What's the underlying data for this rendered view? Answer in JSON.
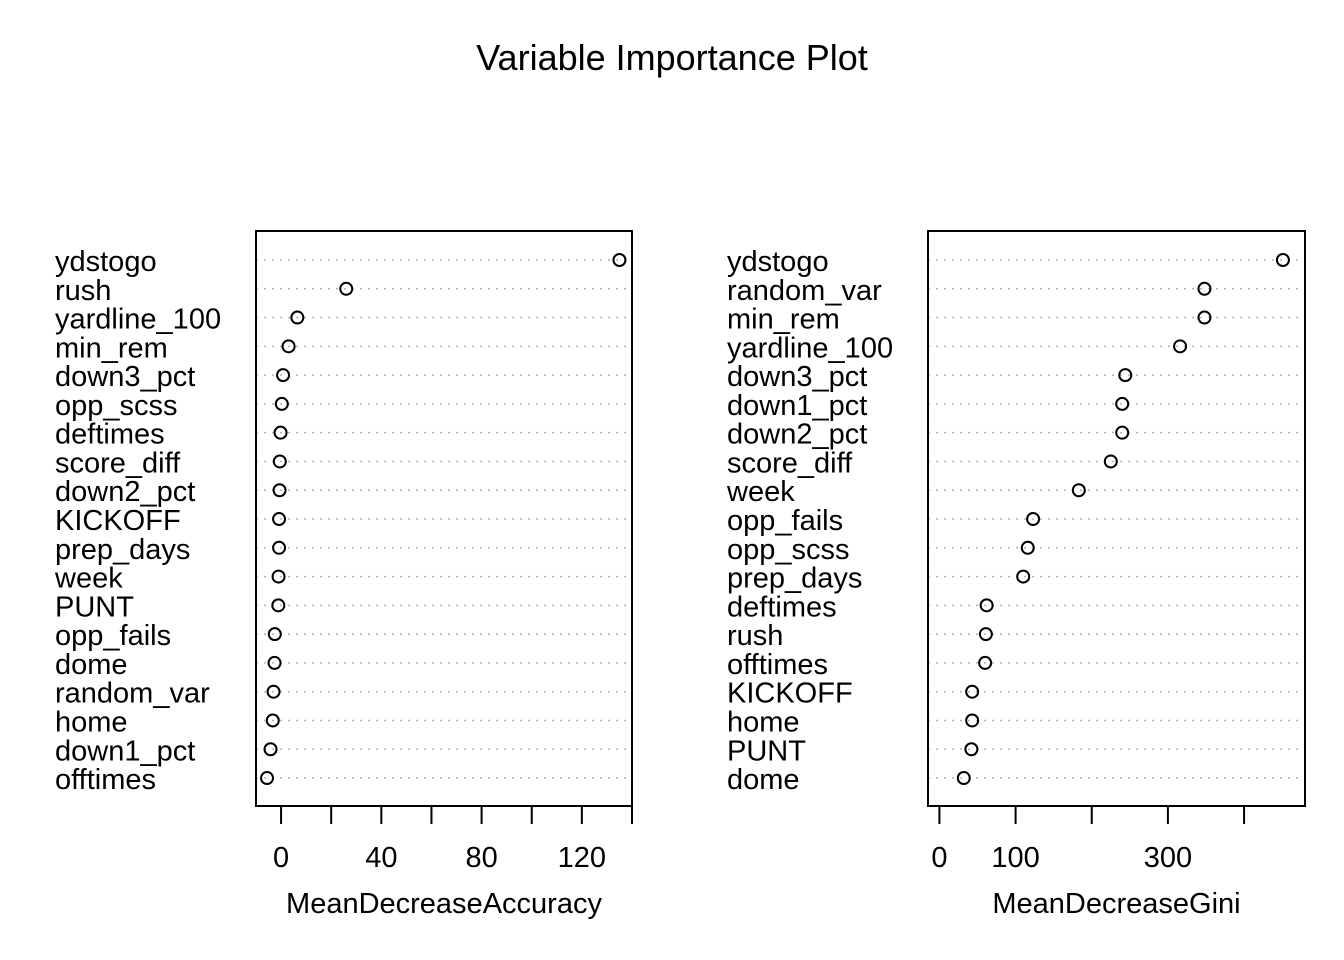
{
  "chart_data": [
    {
      "type": "scatter",
      "title": "Variable Importance Plot",
      "xlabel": "MeanDecreaseAccuracy",
      "xlim": [
        -10,
        140
      ],
      "xticks": [
        0,
        20,
        40,
        60,
        80,
        100,
        120,
        140
      ],
      "xtick_labels": [
        "0",
        "",
        "40",
        "",
        "80",
        "",
        "120",
        ""
      ],
      "grid": "horizontal-dotted",
      "categories": [
        "ydstogo",
        "rush",
        "yardline_100",
        "min_rem",
        "down3_pct",
        "opp_scss",
        "deftimes",
        "score_diff",
        "down2_pct",
        "KICKOFF",
        "prep_days",
        "week",
        "PUNT",
        "opp_fails",
        "dome",
        "random_var",
        "home",
        "down1_pct",
        "offtimes"
      ],
      "values": [
        135,
        26,
        6.5,
        3,
        0.8,
        0.3,
        -0.2,
        -0.5,
        -0.6,
        -0.8,
        -0.8,
        -1.0,
        -1.1,
        -2.5,
        -2.6,
        -3.0,
        -3.3,
        -4.2,
        -5.6
      ]
    },
    {
      "type": "scatter",
      "xlabel": "MeanDecreaseGini",
      "xlim": [
        -15,
        480
      ],
      "xticks": [
        0,
        100,
        200,
        300,
        400
      ],
      "xtick_labels": [
        "0",
        "100",
        "",
        "300",
        ""
      ],
      "grid": "horizontal-dotted",
      "categories": [
        "ydstogo",
        "random_var",
        "min_rem",
        "yardline_100",
        "down3_pct",
        "down1_pct",
        "down2_pct",
        "score_diff",
        "week",
        "opp_fails",
        "opp_scss",
        "prep_days",
        "deftimes",
        "rush",
        "offtimes",
        "KICKOFF",
        "home",
        "PUNT",
        "dome"
      ],
      "values": [
        451,
        348,
        348,
        316,
        244,
        240,
        240,
        225,
        183,
        123,
        116,
        110,
        62,
        61,
        60,
        43,
        43,
        42,
        32
      ]
    }
  ]
}
